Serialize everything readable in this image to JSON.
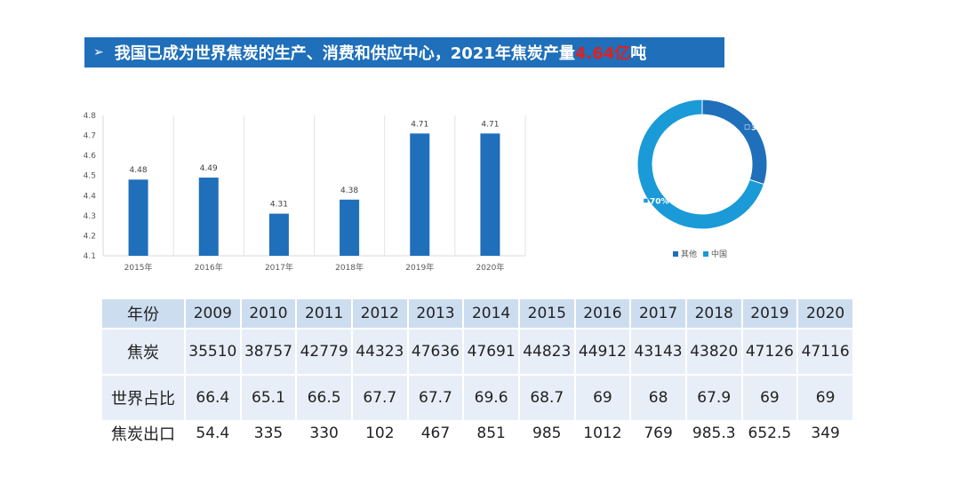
{
  "title": {
    "text": "我国已成为世界焦炭的生产、消费和供应中心，2021年焦炭产量",
    "highlight": "4.64亿",
    "suffix": "吨"
  },
  "chart_data": [
    {
      "type": "bar",
      "categories": [
        "2015年",
        "2016年",
        "2017年",
        "2018年",
        "2019年",
        "2020年"
      ],
      "values": [
        4.48,
        4.49,
        4.31,
        4.38,
        4.71,
        4.71
      ],
      "data_labels": [
        "4.48",
        "4.49",
        "4.31",
        "4.38",
        "4.71",
        "4.71"
      ],
      "ylim": [
        4.1,
        4.8
      ],
      "yticks": [
        "4.1",
        "4.2",
        "4.3",
        "4.4",
        "4.5",
        "4.6",
        "4.7",
        "4.8"
      ],
      "grid": "vertical",
      "bar_color": "#1f6fba"
    },
    {
      "type": "pie",
      "donut": true,
      "slices": [
        {
          "name": "其他",
          "value": 30,
          "label": "30%",
          "color": "#1f6fba"
        },
        {
          "name": "中国",
          "value": 70,
          "label": "70%",
          "color": "#1a9ad6"
        }
      ],
      "legend": "bottom"
    }
  ],
  "table": {
    "rows": [
      {
        "label": "年份",
        "cells": [
          "2009",
          "2010",
          "2011",
          "2012",
          "2013",
          "2014",
          "2015",
          "2016",
          "2017",
          "2018",
          "2019",
          "2020"
        ]
      },
      {
        "label": "焦炭",
        "cells": [
          "35510",
          "38757",
          "42779",
          "44323",
          "47636",
          "47691",
          "44823",
          "44912",
          "43143",
          "43820",
          "47126",
          "47116"
        ]
      },
      {
        "label": "世界占比",
        "cells": [
          "66.4",
          "65.1",
          "66.5",
          "67.7",
          "67.7",
          "69.6",
          "68.7",
          "69",
          "68",
          "67.9",
          "69",
          "69"
        ]
      },
      {
        "label": "焦炭出口",
        "cells": [
          "54.4",
          "335",
          "330",
          "102",
          "467",
          "851",
          "985",
          "1012",
          "769",
          "985.3",
          "652.5",
          "349"
        ]
      }
    ]
  }
}
